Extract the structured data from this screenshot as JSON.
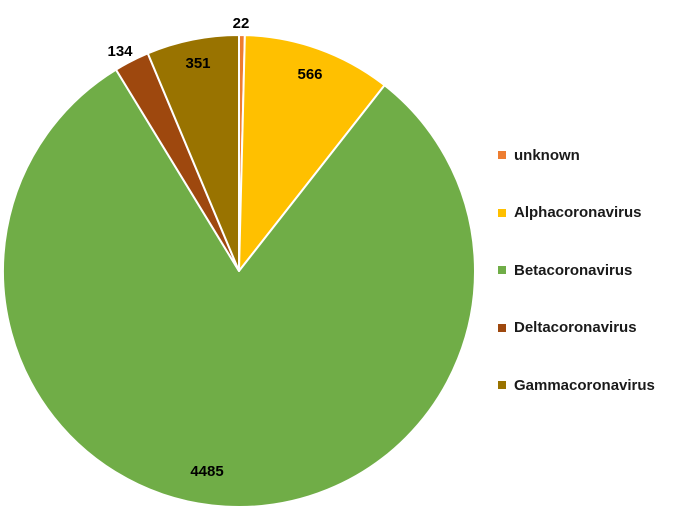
{
  "chart_data": {
    "type": "pie",
    "title": "",
    "categories": [
      "unknown",
      "Alphacoronavirus",
      "Betacoronavirus",
      "Deltacoronavirus",
      "Gammacoronavirus"
    ],
    "values": [
      22,
      566,
      4485,
      134,
      351
    ],
    "colors": [
      "#ED7D31",
      "#FFC000",
      "#70AD47",
      "#9E480E",
      "#997300"
    ],
    "start_angle_deg": 0,
    "direction": "clockwise",
    "legend_position": "right",
    "data_labels": [
      "22",
      "566",
      "4485",
      "134",
      "351"
    ]
  }
}
